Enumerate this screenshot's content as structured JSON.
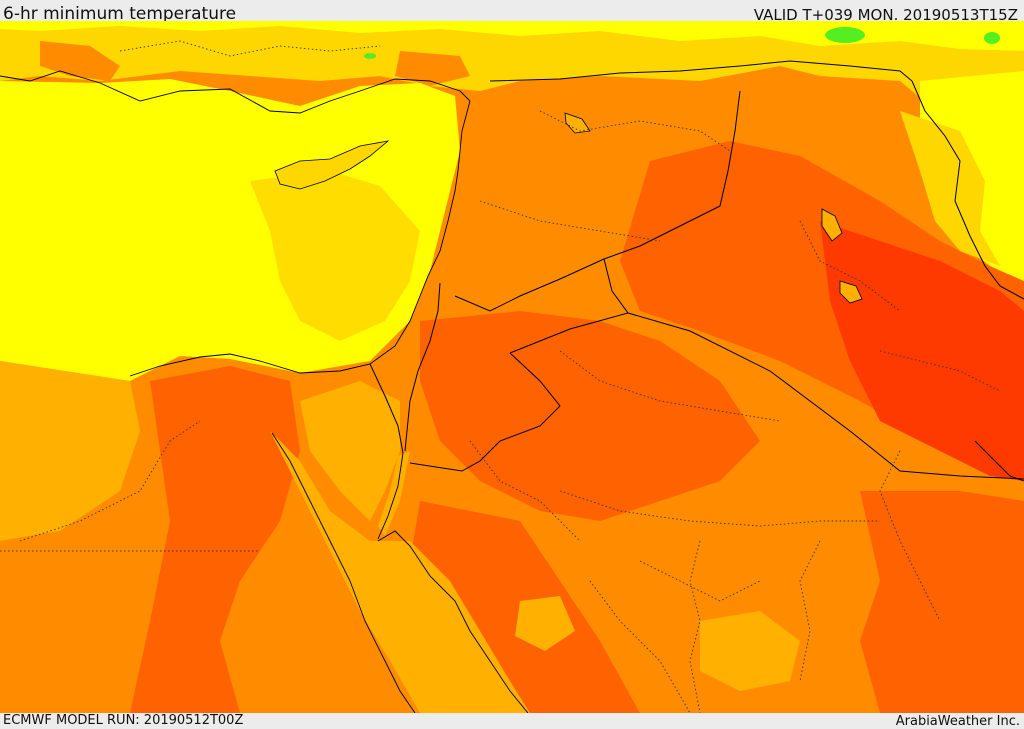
{
  "header": {
    "title": "6-hr minimum temperature",
    "valid": "VALID T+039 MON. 20190513T15Z"
  },
  "footer": {
    "model_run": "ECMWF MODEL RUN: 20190512T00Z",
    "credit": "ArabiaWeather Inc."
  },
  "palette": {
    "light_yellow": "#ffff00",
    "gold": "#ffd700",
    "amber": "#ffb000",
    "orange": "#ff8c00",
    "dark_orange": "#ff6200",
    "red_orange": "#ff3a00",
    "green": "#55ee22",
    "border": "#000000"
  }
}
